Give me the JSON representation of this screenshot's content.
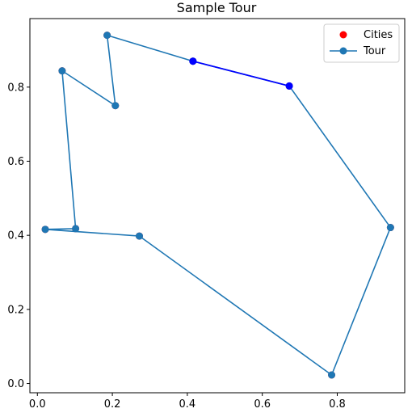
{
  "chart_data": {
    "type": "scatter",
    "title": "Sample Tour",
    "xlabel": "",
    "ylabel": "",
    "xlim": [
      -0.02,
      0.98
    ],
    "ylim": [
      -0.025,
      0.985
    ],
    "xticks": [
      0.0,
      0.2,
      0.4,
      0.6,
      0.8
    ],
    "xtick_labels": [
      "0.0",
      "0.2",
      "0.4",
      "0.6",
      "0.8"
    ],
    "yticks": [
      0.0,
      0.2,
      0.4,
      0.6,
      0.8
    ],
    "ytick_labels": [
      "0.0",
      "0.2",
      "0.4",
      "0.6",
      "0.8"
    ],
    "grid": false,
    "legend_position": "top-right",
    "colors": {
      "cities": "#ff0000",
      "tour": "#1f77b4",
      "highlight": "#0000ff"
    },
    "series": [
      {
        "name": "Cities",
        "type": "scatter",
        "x": [
          0.415,
          0.672,
          0.942,
          0.785,
          0.272,
          0.102,
          0.021,
          0.066,
          0.208,
          0.186
        ],
        "y": [
          0.87,
          0.803,
          0.421,
          0.023,
          0.398,
          0.418,
          0.416,
          0.844,
          0.75,
          0.94
        ]
      },
      {
        "name": "Tour",
        "type": "line",
        "x": [
          0.415,
          0.672,
          0.942,
          0.785,
          0.272,
          0.021,
          0.102,
          0.066,
          0.208,
          0.186,
          0.415
        ],
        "y": [
          0.87,
          0.803,
          0.421,
          0.023,
          0.398,
          0.416,
          0.418,
          0.844,
          0.75,
          0.94,
          0.87
        ]
      },
      {
        "name": "",
        "type": "highlight-segment",
        "x": [
          0.415,
          0.672
        ],
        "y": [
          0.87,
          0.803
        ]
      }
    ]
  }
}
